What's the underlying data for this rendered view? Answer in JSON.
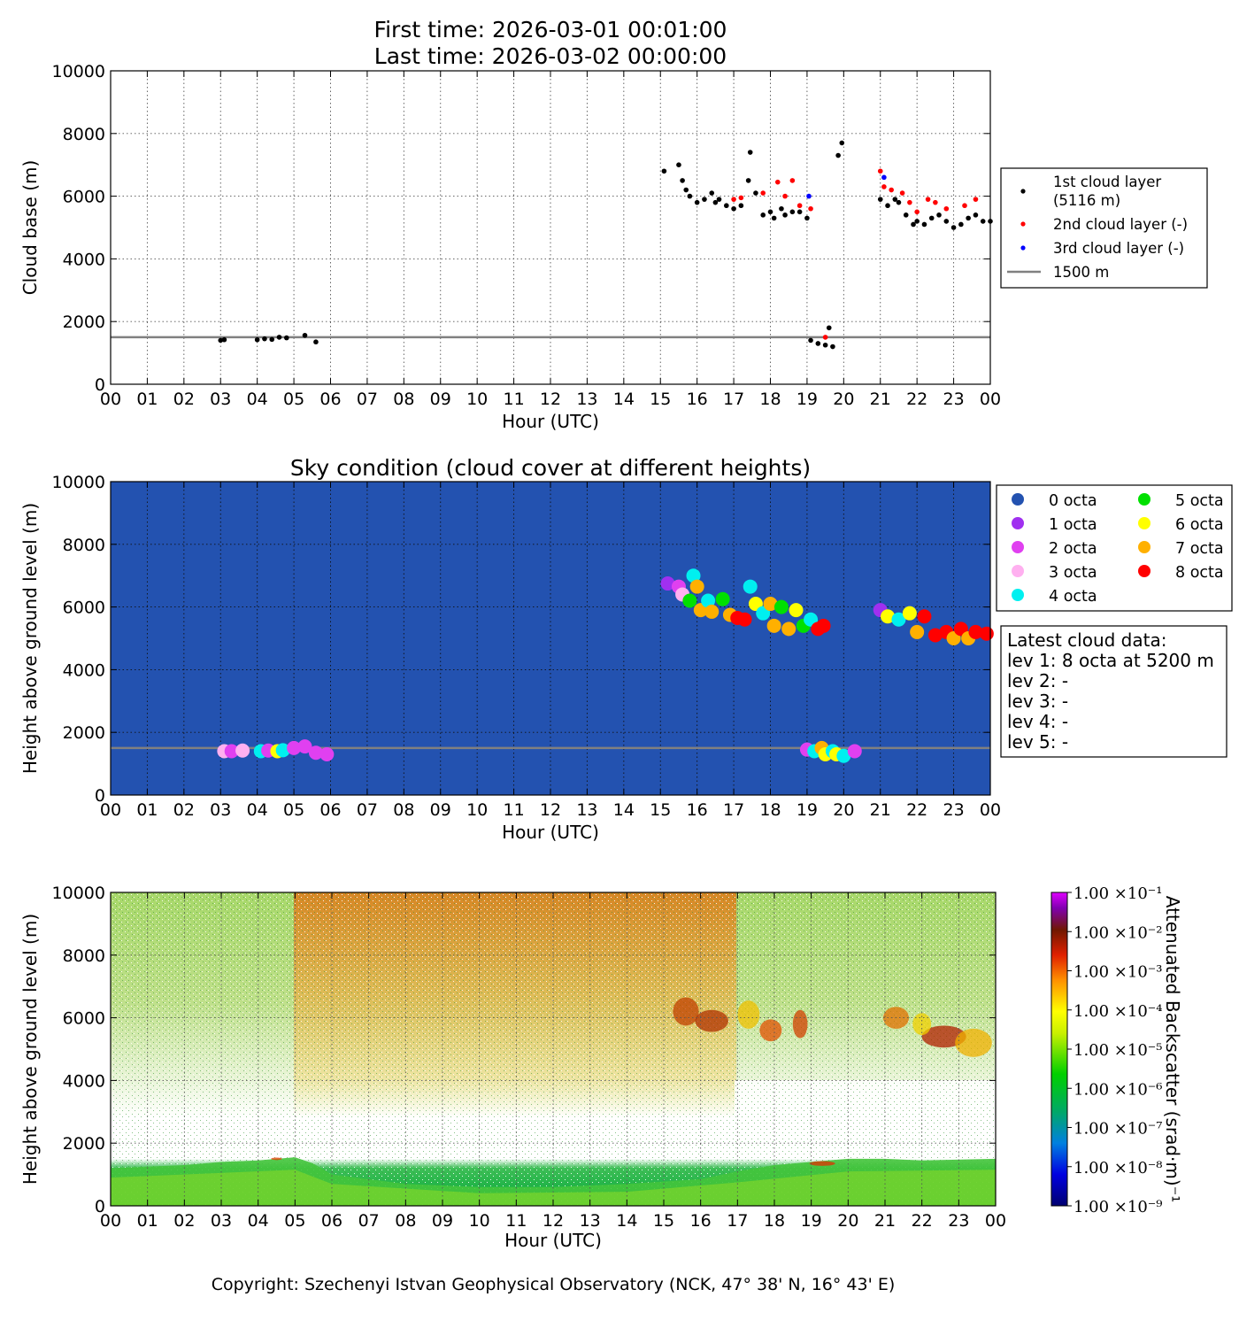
{
  "header": {
    "first_time": "First time: 2026-03-01 00:01:00",
    "last_time": "Last time: 2026-03-02 00:00:00"
  },
  "x_tick_labels": [
    "00",
    "01",
    "02",
    "03",
    "04",
    "05",
    "06",
    "07",
    "08",
    "09",
    "10",
    "11",
    "12",
    "13",
    "14",
    "15",
    "16",
    "17",
    "18",
    "19",
    "20",
    "21",
    "22",
    "23",
    "00"
  ],
  "footer": "Copyright: Szechenyi Istvan Geophysical Observatory (NCK, 47° 38' N, 16° 43' E)",
  "colors": {
    "layer1": "#000000",
    "layer2": "#ff0000",
    "layer3": "#0000ff",
    "ref_line": "#808080",
    "sky_bg": "#2352b0",
    "octa": [
      "#2352b0",
      "#a030f0",
      "#e040f0",
      "#ffb0f0",
      "#00f0f0",
      "#00e000",
      "#ffff00",
      "#ffb000",
      "#ff0000"
    ]
  },
  "legend1": {
    "l1a": "1st cloud layer",
    "l1b": "(5116 m)",
    "l2": "2nd cloud layer (-)",
    "l3": "3rd cloud layer (-)",
    "l4": "1500 m"
  },
  "octa_legend": [
    "0 octa",
    "1 octa",
    "2 octa",
    "3 octa",
    "4 octa",
    "5 octa",
    "6 octa",
    "7 octa",
    "8 octa"
  ],
  "latest": {
    "title": "Latest cloud data:",
    "lines": [
      "lev 1: 8 octa at 5200 m",
      "lev 2: -",
      "lev 3: -",
      "lev 4: -",
      "lev 5: -"
    ]
  },
  "colorbar": {
    "label": "Attenuated Backscatter (srad·m)⁻¹",
    "tick_labels": [
      "1.00 ×10⁻¹",
      "1.00 ×10⁻²",
      "1.00 ×10⁻³",
      "1.00 ×10⁻⁴",
      "1.00 ×10⁻⁵",
      "1.00 ×10⁻⁶",
      "1.00 ×10⁻⁷",
      "1.00 ×10⁻⁸",
      "1.00 ×10⁻⁹"
    ]
  },
  "chart_data": [
    {
      "type": "scatter",
      "title": "",
      "xlabel": "Hour (UTC)",
      "ylabel": "Cloud base (m)",
      "xlim": [
        0,
        24
      ],
      "ylim": [
        0,
        10000
      ],
      "yticks": [
        0,
        2000,
        4000,
        6000,
        8000,
        10000
      ],
      "grid": true,
      "legend_position": "right-outside",
      "reference_line": {
        "name": "1500 m",
        "y": 1500
      },
      "series": [
        {
          "name": "1st cloud layer (5116 m)",
          "x": [
            3.0,
            3.1,
            4.0,
            4.2,
            4.4,
            4.6,
            4.8,
            5.3,
            5.6,
            15.1,
            15.5,
            15.6,
            15.7,
            15.8,
            16.0,
            16.2,
            16.4,
            16.5,
            16.6,
            16.8,
            17.0,
            17.2,
            17.4,
            17.45,
            17.6,
            17.8,
            18.0,
            18.1,
            18.3,
            18.4,
            18.6,
            18.8,
            19.0,
            19.1,
            19.3,
            19.5,
            19.6,
            19.7,
            19.85,
            19.95,
            21.0,
            21.2,
            21.4,
            21.5,
            21.7,
            21.9,
            22.0,
            22.2,
            22.4,
            22.6,
            22.8,
            23.0,
            23.2,
            23.4,
            23.6,
            23.8,
            24.0
          ],
          "y": [
            1400,
            1420,
            1420,
            1450,
            1430,
            1500,
            1480,
            1560,
            1350,
            6800,
            7000,
            6500,
            6200,
            6000,
            5800,
            5900,
            6100,
            5800,
            5900,
            5700,
            5600,
            5700,
            6500,
            7400,
            6100,
            5400,
            5500,
            5300,
            5600,
            5400,
            5500,
            5500,
            5300,
            1400,
            1300,
            1250,
            1800,
            1200,
            7300,
            7700,
            5900,
            5700,
            5900,
            5800,
            5400,
            5100,
            5200,
            5100,
            5300,
            5400,
            5200,
            5000,
            5100,
            5300,
            5400,
            5200,
            5200
          ]
        },
        {
          "name": "2nd cloud layer (-)",
          "x": [
            17.0,
            17.2,
            17.8,
            18.2,
            18.4,
            18.6,
            18.8,
            19.1,
            19.5,
            21.0,
            21.1,
            21.3,
            21.6,
            21.8,
            22.0,
            22.3,
            22.5,
            22.8,
            23.3,
            23.6
          ],
          "y": [
            5900,
            5950,
            6100,
            6450,
            6000,
            6500,
            5700,
            5600,
            1500,
            6800,
            6300,
            6200,
            6100,
            5800,
            5500,
            5900,
            5800,
            5600,
            5700,
            5900
          ]
        },
        {
          "name": "3rd cloud layer (-)",
          "x": [
            19.05,
            21.1
          ],
          "y": [
            6000,
            6600
          ]
        }
      ]
    },
    {
      "type": "scatter",
      "title": "Sky condition (cloud cover at different heights)",
      "xlabel": "Hour (UTC)",
      "ylabel": "Height above ground level (m)",
      "xlim": [
        0,
        24
      ],
      "ylim": [
        0,
        10000
      ],
      "yticks": [
        0,
        2000,
        4000,
        6000,
        8000,
        10000
      ],
      "grid": true,
      "legend_position": "right-outside",
      "reference_line": {
        "y": 1500
      },
      "points": [
        {
          "x": 3.1,
          "y": 1400,
          "octa": 3
        },
        {
          "x": 3.3,
          "y": 1400,
          "octa": 2
        },
        {
          "x": 3.6,
          "y": 1420,
          "octa": 3
        },
        {
          "x": 4.1,
          "y": 1400,
          "octa": 4
        },
        {
          "x": 4.3,
          "y": 1420,
          "octa": 2
        },
        {
          "x": 4.55,
          "y": 1400,
          "octa": 6
        },
        {
          "x": 4.7,
          "y": 1430,
          "octa": 4
        },
        {
          "x": 5.0,
          "y": 1500,
          "octa": 2
        },
        {
          "x": 5.3,
          "y": 1550,
          "octa": 2
        },
        {
          "x": 5.6,
          "y": 1350,
          "octa": 2
        },
        {
          "x": 5.9,
          "y": 1300,
          "octa": 2
        },
        {
          "x": 15.2,
          "y": 6750,
          "octa": 1
        },
        {
          "x": 15.5,
          "y": 6650,
          "octa": 2
        },
        {
          "x": 15.6,
          "y": 6400,
          "octa": 3
        },
        {
          "x": 15.8,
          "y": 6200,
          "octa": 5
        },
        {
          "x": 15.9,
          "y": 7000,
          "octa": 4
        },
        {
          "x": 16.0,
          "y": 6650,
          "octa": 7
        },
        {
          "x": 16.1,
          "y": 5900,
          "octa": 7
        },
        {
          "x": 16.3,
          "y": 6200,
          "octa": 4
        },
        {
          "x": 16.4,
          "y": 5850,
          "octa": 7
        },
        {
          "x": 16.7,
          "y": 6250,
          "octa": 5
        },
        {
          "x": 16.9,
          "y": 5750,
          "octa": 7
        },
        {
          "x": 17.1,
          "y": 5650,
          "octa": 8
        },
        {
          "x": 17.3,
          "y": 5600,
          "octa": 8
        },
        {
          "x": 17.45,
          "y": 6650,
          "octa": 4
        },
        {
          "x": 17.6,
          "y": 6100,
          "octa": 6
        },
        {
          "x": 17.8,
          "y": 5800,
          "octa": 4
        },
        {
          "x": 18.0,
          "y": 6100,
          "octa": 7
        },
        {
          "x": 18.1,
          "y": 5400,
          "octa": 7
        },
        {
          "x": 18.3,
          "y": 6000,
          "octa": 5
        },
        {
          "x": 18.5,
          "y": 5300,
          "octa": 7
        },
        {
          "x": 18.7,
          "y": 5900,
          "octa": 6
        },
        {
          "x": 18.9,
          "y": 5400,
          "octa": 5
        },
        {
          "x": 19.1,
          "y": 5600,
          "octa": 4
        },
        {
          "x": 19.3,
          "y": 5300,
          "octa": 8
        },
        {
          "x": 19.45,
          "y": 5400,
          "octa": 8
        },
        {
          "x": 19.0,
          "y": 1450,
          "octa": 2
        },
        {
          "x": 19.2,
          "y": 1400,
          "octa": 4
        },
        {
          "x": 19.4,
          "y": 1500,
          "octa": 7
        },
        {
          "x": 19.5,
          "y": 1300,
          "octa": 6
        },
        {
          "x": 19.7,
          "y": 1400,
          "octa": 4
        },
        {
          "x": 19.8,
          "y": 1300,
          "octa": 6
        },
        {
          "x": 20.0,
          "y": 1250,
          "octa": 4
        },
        {
          "x": 20.3,
          "y": 1400,
          "octa": 2
        },
        {
          "x": 21.0,
          "y": 5900,
          "octa": 1
        },
        {
          "x": 21.2,
          "y": 5700,
          "octa": 6
        },
        {
          "x": 21.5,
          "y": 5600,
          "octa": 4
        },
        {
          "x": 21.8,
          "y": 5800,
          "octa": 6
        },
        {
          "x": 22.0,
          "y": 5200,
          "octa": 7
        },
        {
          "x": 22.2,
          "y": 5700,
          "octa": 8
        },
        {
          "x": 22.5,
          "y": 5100,
          "octa": 8
        },
        {
          "x": 22.8,
          "y": 5200,
          "octa": 8
        },
        {
          "x": 23.0,
          "y": 5000,
          "octa": 7
        },
        {
          "x": 23.2,
          "y": 5300,
          "octa": 8
        },
        {
          "x": 23.4,
          "y": 5000,
          "octa": 7
        },
        {
          "x": 23.6,
          "y": 5200,
          "octa": 8
        },
        {
          "x": 23.9,
          "y": 5150,
          "octa": 8
        }
      ]
    },
    {
      "type": "heatmap",
      "title": "",
      "xlabel": "Hour (UTC)",
      "ylabel": "Height above ground level (m)",
      "xlim": [
        0,
        24
      ],
      "ylim": [
        0,
        10000
      ],
      "yticks": [
        0,
        2000,
        4000,
        6000,
        8000,
        10000
      ],
      "colorbar_label": "Attenuated Backscatter (srad·m)⁻¹",
      "colorbar_range": [
        1e-09,
        0.1
      ],
      "colormap": "nipy_spectral (blue-green-yellow-red-purple)"
    }
  ]
}
